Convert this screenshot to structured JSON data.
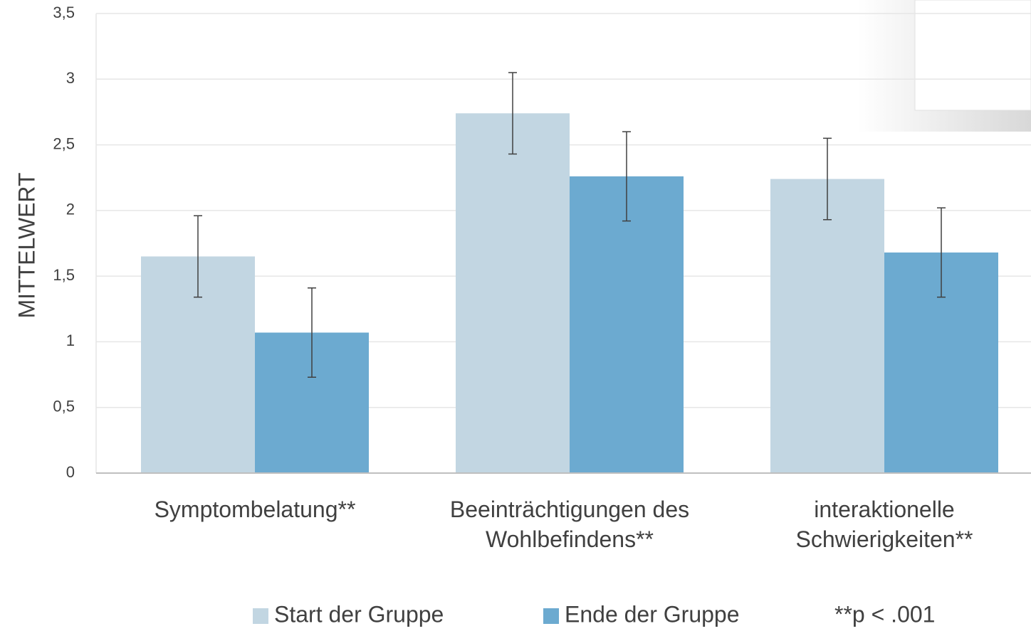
{
  "chart_data": {
    "type": "bar",
    "y_label": "MITTELWERT",
    "categories": [
      "Symptombelatung**",
      "Beeinträchtigungen des Wohlbefindens**",
      "interaktionelle Schwierigkeiten**"
    ],
    "series": [
      {
        "name": "Start der Gruppe",
        "color": "#c2d6e2",
        "values": [
          1.65,
          2.74,
          2.24
        ],
        "errors": [
          0.31,
          0.31,
          0.31
        ]
      },
      {
        "name": "Ende der Gruppe",
        "color": "#6caad0",
        "values": [
          1.07,
          2.26,
          1.68
        ],
        "errors": [
          0.34,
          0.34,
          0.34
        ]
      }
    ],
    "ylim": [
      0,
      3.5
    ],
    "yticks": [
      0,
      {
        "value": 0.5,
        "label": "0,5"
      },
      1,
      {
        "value": 1.5,
        "label": "1,5"
      },
      2,
      {
        "value": 2.5,
        "label": "2,5"
      },
      3,
      {
        "value": 3.5,
        "label": "3,5"
      }
    ],
    "grid": true,
    "legend": "bottom",
    "annotation": "**p < .001"
  }
}
